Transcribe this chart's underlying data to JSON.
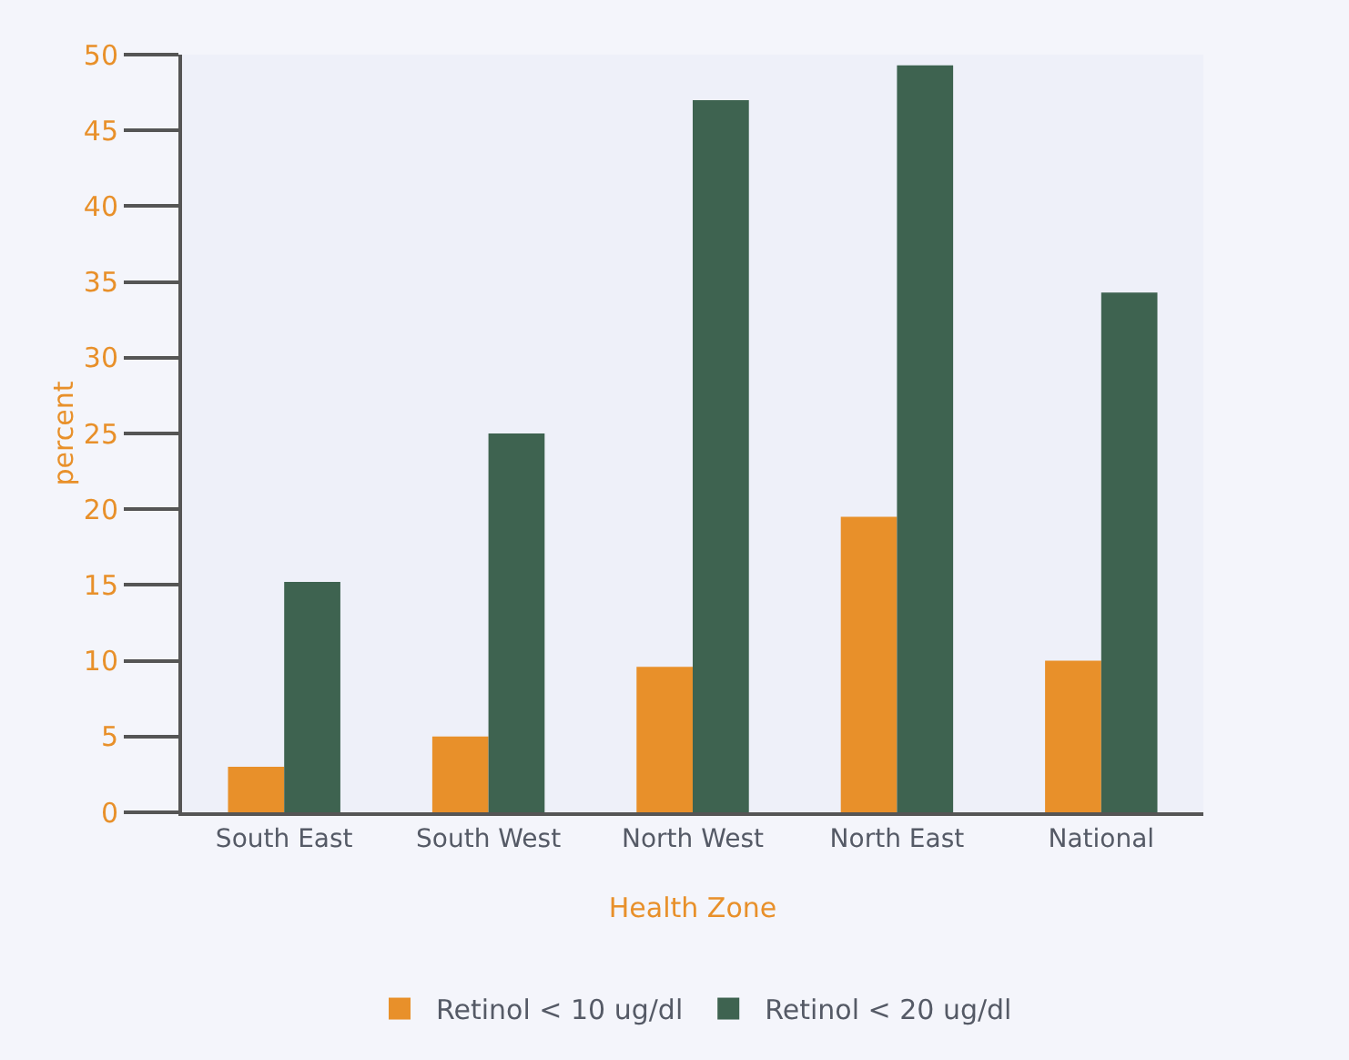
{
  "chart_data": {
    "type": "bar",
    "xlabel": "Health Zone",
    "ylabel": "percent",
    "categories": [
      "South East",
      "South West",
      "North West",
      "North East",
      "National"
    ],
    "series": [
      {
        "name": "Retinol < 10 ug/dl",
        "color": "#e8902a",
        "values": [
          3,
          5,
          9.6,
          19.5,
          10
        ]
      },
      {
        "name": "Retinol < 20 ug/dl",
        "color": "#3e6350",
        "values": [
          15.2,
          25,
          47,
          49.3,
          34.3
        ]
      }
    ],
    "ylim": [
      0,
      50
    ],
    "yticks": [
      0,
      5,
      10,
      15,
      20,
      25,
      30,
      35,
      40,
      45,
      50
    ],
    "grid": false,
    "legend": "bottom"
  }
}
